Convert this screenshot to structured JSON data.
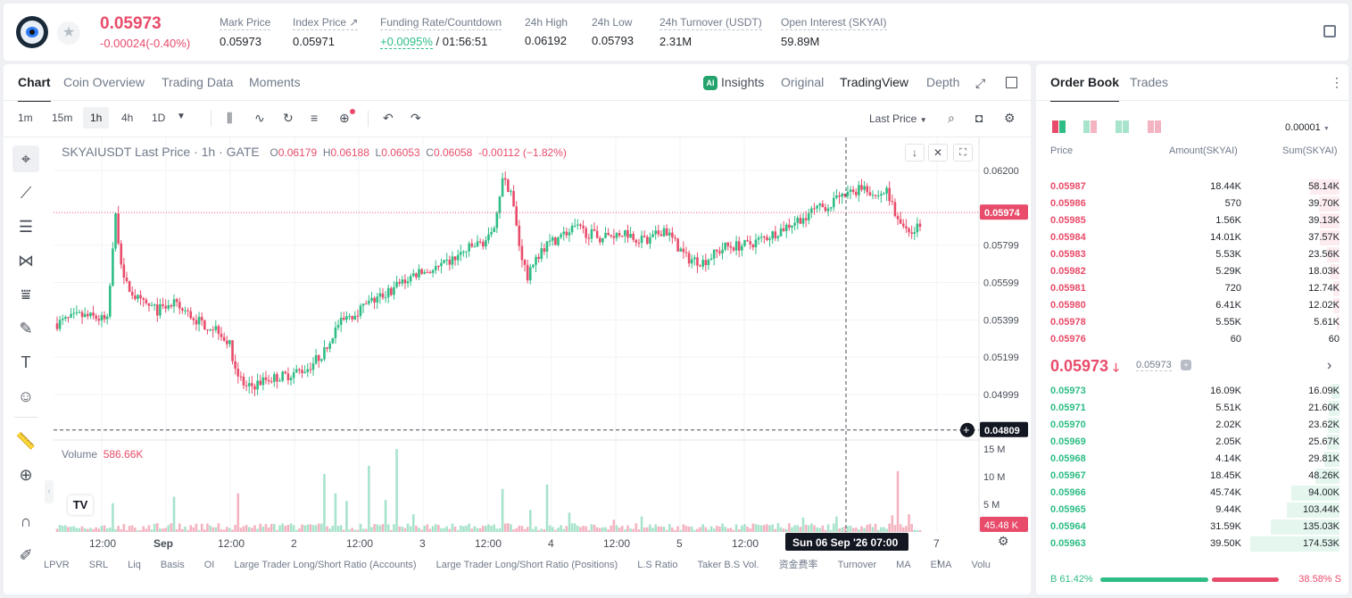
{
  "ticker": {
    "price": "0.05973",
    "change": "-0.00024(-0.40%)",
    "stats": [
      {
        "label": "Mark Price",
        "value": "0.05973"
      },
      {
        "label": "Index Price ↗",
        "value": "0.05971"
      },
      {
        "label": "Funding Rate/Countdown",
        "value_green": "+0.0095%",
        "value": " / 01:56:51"
      },
      {
        "label": "24h High",
        "value": "0.06192"
      },
      {
        "label": "24h Low",
        "value": "0.05793"
      },
      {
        "label": "24h Turnover (USDT)",
        "value": "2.31M"
      },
      {
        "label": "Open Interest (SKYAI)",
        "value": "59.89M"
      }
    ]
  },
  "chart_tabs": [
    "Chart",
    "Coin Overview",
    "Trading Data",
    "Moments"
  ],
  "view_tabs": {
    "insights": "Insights",
    "original": "Original",
    "tradingview": "TradingView",
    "depth": "Depth",
    "ai_badge": "AI"
  },
  "timeframes": [
    "1m",
    "15m",
    "1h",
    "4h",
    "1D"
  ],
  "price_type": "Last Price",
  "legend": {
    "symbol": "SKYAIUSDT Last Price · 1h · GATE",
    "o_label": "O",
    "o": "0.06179",
    "h_label": "H",
    "h": "0.06188",
    "l_label": "L",
    "l": "0.06053",
    "c_label": "C",
    "c": "0.06058",
    "chg": "-0.00112 (−1.82%)"
  },
  "volume_legend": {
    "label": "Volume",
    "value": "586.66K"
  },
  "chart_data": {
    "type": "candlestick",
    "price_axis_ticks": [
      "0.06200",
      "0.05799",
      "0.05599",
      "0.05399",
      "0.05199",
      "0.04999"
    ],
    "current_price_label": "0.05974",
    "crosshair_price_label": "0.04809",
    "volume_axis_ticks": [
      "15 M",
      "10 M",
      "5 M"
    ],
    "volume_current_label": "45.48 K",
    "x_ticks": [
      "12:00",
      "Sep",
      "12:00",
      "2",
      "12:00",
      "3",
      "12:00",
      "4",
      "12:00",
      "5",
      "12:00",
      "7"
    ],
    "crosshair_time_label": "Sun 06 Sep '26   07:00",
    "ylim": [
      0.0476,
      0.0629
    ],
    "vol_ylim": [
      0,
      16000000
    ]
  },
  "indicators": [
    "LPVR",
    "SRL",
    "Liq",
    "Basis",
    "OI",
    "Large Trader Long/Short Ratio (Accounts)",
    "Large Trader Long/Short Ratio (Positions)",
    "L.S Ratio",
    "Taker B.S Vol.",
    "资金费率",
    "Turnover",
    "MA",
    "EMA",
    "Volu"
  ],
  "tv_logo": "TV",
  "orderbook": {
    "tabs": [
      "Order Book",
      "Trades"
    ],
    "precision": "0.00001",
    "headers": {
      "price": "Price",
      "amount": "Amount(SKYAI)",
      "sum": "Sum(SKYAI)"
    },
    "asks": [
      {
        "price": "0.05987",
        "amount": "18.44K",
        "sum": "58.14K",
        "depth": 0.33
      },
      {
        "price": "0.05986",
        "amount": "570",
        "sum": "39.70K",
        "depth": 0.23
      },
      {
        "price": "0.05985",
        "amount": "1.56K",
        "sum": "39.13K",
        "depth": 0.22
      },
      {
        "price": "0.05984",
        "amount": "14.01K",
        "sum": "37.57K",
        "depth": 0.22
      },
      {
        "price": "0.05983",
        "amount": "5.53K",
        "sum": "23.56K",
        "depth": 0.14
      },
      {
        "price": "0.05982",
        "amount": "5.29K",
        "sum": "18.03K",
        "depth": 0.1
      },
      {
        "price": "0.05981",
        "amount": "720",
        "sum": "12.74K",
        "depth": 0.07
      },
      {
        "price": "0.05980",
        "amount": "6.41K",
        "sum": "12.02K",
        "depth": 0.07
      },
      {
        "price": "0.05978",
        "amount": "5.55K",
        "sum": "5.61K",
        "depth": 0.03
      },
      {
        "price": "0.05976",
        "amount": "60",
        "sum": "60",
        "depth": 0.0
      }
    ],
    "last_price": "0.05973",
    "mark_price": "0.05973",
    "bids": [
      {
        "price": "0.05973",
        "amount": "16.09K",
        "sum": "16.09K",
        "depth": 0.09
      },
      {
        "price": "0.05971",
        "amount": "5.51K",
        "sum": "21.60K",
        "depth": 0.12
      },
      {
        "price": "0.05970",
        "amount": "2.02K",
        "sum": "23.62K",
        "depth": 0.13
      },
      {
        "price": "0.05969",
        "amount": "2.05K",
        "sum": "25.67K",
        "depth": 0.14
      },
      {
        "price": "0.05968",
        "amount": "4.14K",
        "sum": "29.81K",
        "depth": 0.17
      },
      {
        "price": "0.05967",
        "amount": "18.45K",
        "sum": "48.26K",
        "depth": 0.27
      },
      {
        "price": "0.05966",
        "amount": "45.74K",
        "sum": "94.00K",
        "depth": 0.54
      },
      {
        "price": "0.05965",
        "amount": "9.44K",
        "sum": "103.44K",
        "depth": 0.59
      },
      {
        "price": "0.05964",
        "amount": "31.59K",
        "sum": "135.03K",
        "depth": 0.77
      },
      {
        "price": "0.05963",
        "amount": "39.50K",
        "sum": "174.53K",
        "depth": 1.0
      }
    ],
    "ratio": {
      "buy_label": "B",
      "buy": "61.42%",
      "sell": "38.58%",
      "sell_label": "S",
      "buy_fraction": 0.6142
    }
  },
  "colors": {
    "up": "#2ebd85",
    "down": "#e84c6a",
    "accent": "#1e2329"
  }
}
